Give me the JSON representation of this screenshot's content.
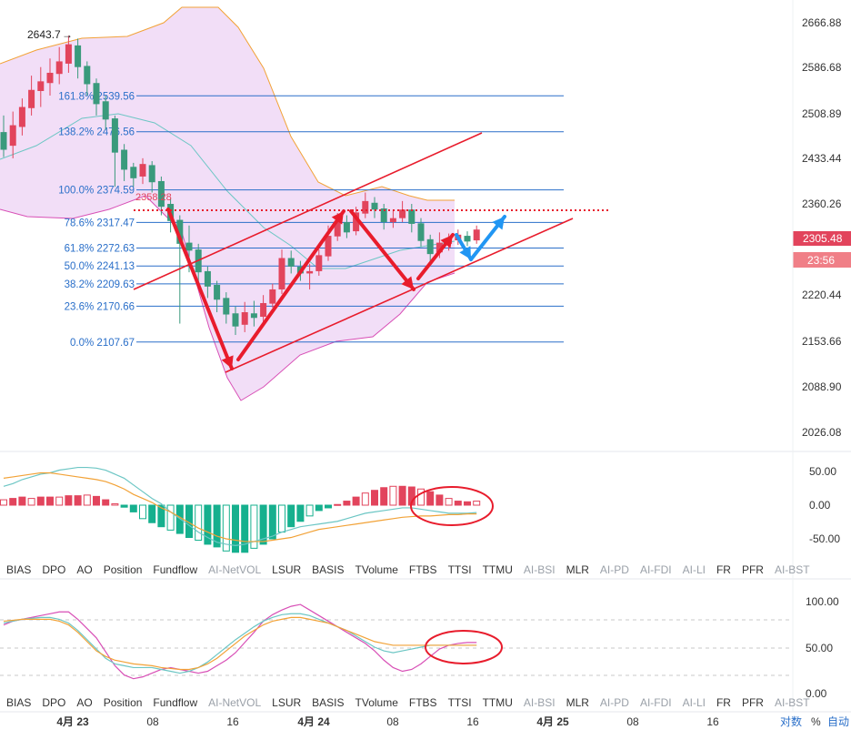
{
  "chart_data": [
    {
      "type": "candlestick",
      "name": "main",
      "y_ticks": [
        "2666.88",
        "2586.68",
        "2508.89",
        "2433.44",
        "2360.26",
        "2220.44",
        "2153.66",
        "2088.90",
        "2026.08"
      ],
      "current_price_label": "2305.48",
      "countdown_label": "23:56",
      "high_annotation": "2643.7",
      "low_label_partial": "2358.28",
      "fib_levels": [
        {
          "label": "161.8% 2539.56",
          "price": 2539.56
        },
        {
          "label": "138.2% 2476.56",
          "price": 2476.56
        },
        {
          "label": "100.0% 2374.59",
          "price": 2374.59
        },
        {
          "label": "78.6% 2317.47",
          "price": 2317.47
        },
        {
          "label": "61.8% 2272.63",
          "price": 2272.63
        },
        {
          "label": "50.0% 2241.13",
          "price": 2241.13
        },
        {
          "label": "38.2% 2209.63",
          "price": 2209.63
        },
        {
          "label": "23.6% 2170.66",
          "price": 2170.66
        },
        {
          "label": "0.0% 2107.67",
          "price": 2107.67
        }
      ],
      "candles": [
        [
          2476,
          2445,
          2505,
          2432
        ],
        [
          2452,
          2488,
          2512,
          2430
        ],
        [
          2485,
          2520,
          2535,
          2470
        ],
        [
          2518,
          2550,
          2575,
          2505
        ],
        [
          2548,
          2565,
          2590,
          2520
        ],
        [
          2562,
          2580,
          2605,
          2540
        ],
        [
          2578,
          2600,
          2625,
          2560
        ],
        [
          2596,
          2630,
          2645,
          2580
        ],
        [
          2628,
          2590,
          2640,
          2570
        ],
        [
          2592,
          2560,
          2600,
          2540
        ],
        [
          2562,
          2525,
          2570,
          2505
        ],
        [
          2530,
          2498,
          2540,
          2480
        ],
        [
          2500,
          2440,
          2505,
          2380
        ],
        [
          2445,
          2410,
          2455,
          2390
        ],
        [
          2415,
          2395,
          2422,
          2380
        ],
        [
          2398,
          2420,
          2430,
          2385
        ],
        [
          2418,
          2388,
          2425,
          2370
        ],
        [
          2390,
          2345,
          2398,
          2330
        ],
        [
          2350,
          2320,
          2360,
          2300
        ],
        [
          2322,
          2280,
          2330,
          2140
        ],
        [
          2282,
          2268,
          2312,
          2230
        ],
        [
          2270,
          2230,
          2280,
          2210
        ],
        [
          2232,
          2205,
          2240,
          2185
        ],
        [
          2208,
          2182,
          2215,
          2160
        ],
        [
          2185,
          2156,
          2195,
          2140
        ],
        [
          2158,
          2135,
          2170,
          2120
        ],
        [
          2138,
          2160,
          2178,
          2125
        ],
        [
          2158,
          2150,
          2180,
          2135
        ],
        [
          2152,
          2176,
          2190,
          2140
        ],
        [
          2175,
          2200,
          2210,
          2168
        ],
        [
          2200,
          2255,
          2270,
          2192
        ],
        [
          2255,
          2240,
          2268,
          2228
        ],
        [
          2240,
          2228,
          2250,
          2215
        ],
        [
          2228,
          2232,
          2245,
          2200
        ],
        [
          2232,
          2260,
          2270,
          2224
        ],
        [
          2258,
          2294,
          2312,
          2250
        ],
        [
          2293,
          2320,
          2334,
          2285
        ],
        [
          2318,
          2300,
          2330,
          2290
        ],
        [
          2302,
          2335,
          2345,
          2295
        ],
        [
          2333,
          2355,
          2370,
          2325
        ],
        [
          2352,
          2340,
          2362,
          2325
        ],
        [
          2342,
          2318,
          2350,
          2305
        ],
        [
          2318,
          2325,
          2340,
          2308
        ],
        [
          2325,
          2340,
          2355,
          2318
        ],
        [
          2340,
          2315,
          2350,
          2300
        ],
        [
          2316,
          2285,
          2325,
          2275
        ],
        [
          2288,
          2262,
          2296,
          2245
        ],
        [
          2265,
          2282,
          2300,
          2255
        ],
        [
          2280,
          2288,
          2298,
          2268
        ],
        [
          2286,
          2296,
          2305,
          2278
        ],
        [
          2294,
          2284,
          2302,
          2276
        ],
        [
          2286,
          2305,
          2312,
          2280
        ]
      ]
    },
    {
      "type": "histogram",
      "name": "oscillator_1",
      "y_ticks": [
        "50.00",
        "0.00",
        "-50.00"
      ],
      "bars": [
        8,
        10,
        12,
        10,
        12,
        12,
        12,
        14,
        14,
        15,
        13,
        8,
        2,
        -3,
        -10,
        -20,
        -26,
        -32,
        -37,
        -42,
        -48,
        -52,
        -58,
        -62,
        -68,
        -70,
        -70,
        -64,
        -58,
        -50,
        -40,
        -32,
        -24,
        -16,
        -8,
        -4,
        1,
        6,
        12,
        18,
        22,
        26,
        28,
        28,
        27,
        24,
        20,
        15,
        10,
        6,
        5,
        6
      ],
      "line_a": [
        28,
        32,
        38,
        42,
        46,
        48,
        52,
        54,
        56,
        56,
        55,
        52,
        46,
        40,
        30,
        20,
        10,
        2,
        -10,
        -20,
        -30,
        -40,
        -48,
        -55,
        -58,
        -60,
        -58,
        -54,
        -50,
        -46,
        -40,
        -36,
        -32,
        -30,
        -28,
        -26,
        -24,
        -20,
        -16,
        -12,
        -10,
        -8,
        -6,
        -4,
        -4,
        -6,
        -8,
        -10,
        -12,
        -12,
        -12,
        -11
      ],
      "line_b": [
        40,
        42,
        44,
        46,
        48,
        48,
        46,
        44,
        42,
        40,
        38,
        35,
        30,
        24,
        16,
        10,
        4,
        -4,
        -10,
        -18,
        -26,
        -34,
        -40,
        -46,
        -50,
        -52,
        -54,
        -54,
        -54,
        -52,
        -50,
        -48,
        -44,
        -40,
        -36,
        -34,
        -32,
        -30,
        -28,
        -26,
        -24,
        -22,
        -20,
        -18,
        -17,
        -16,
        -16,
        -15,
        -14,
        -14,
        -13,
        -13
      ]
    },
    {
      "type": "line",
      "name": "oscillator_2",
      "y_ticks": [
        "100.00",
        "50.00",
        "0.00"
      ],
      "line_k": [
        74,
        78,
        80,
        82,
        84,
        86,
        88,
        88,
        80,
        70,
        60,
        45,
        30,
        20,
        16,
        18,
        22,
        26,
        28,
        26,
        24,
        22,
        24,
        30,
        36,
        44,
        55,
        66,
        78,
        85,
        90,
        94,
        96,
        90,
        84,
        78,
        72,
        66,
        60,
        54,
        46,
        36,
        28,
        24,
        26,
        32,
        40,
        48,
        52,
        54,
        55,
        55
      ],
      "line_a": [
        76,
        78,
        80,
        81,
        82,
        82,
        80,
        76,
        68,
        58,
        48,
        38,
        32,
        30,
        28,
        28,
        28,
        26,
        24,
        22,
        24,
        28,
        34,
        42,
        50,
        58,
        65,
        72,
        78,
        82,
        85,
        86,
        86,
        84,
        80,
        76,
        72,
        68,
        62,
        56,
        50,
        46,
        44,
        46,
        48,
        50,
        52,
        52,
        52,
        52,
        52,
        52
      ],
      "line_b": [
        78,
        79,
        80,
        80,
        80,
        80,
        78,
        74,
        66,
        56,
        46,
        40,
        36,
        34,
        32,
        31,
        30,
        28,
        27,
        26,
        26,
        28,
        32,
        38,
        46,
        54,
        62,
        68,
        74,
        78,
        80,
        82,
        82,
        80,
        78,
        76,
        72,
        68,
        64,
        60,
        56,
        54,
        52,
        52,
        52,
        52,
        52,
        52,
        52,
        52,
        52,
        52
      ]
    }
  ],
  "tabs": [
    "BIAS",
    "DPO",
    "AO",
    "Position",
    "Fundflow",
    "AI-NetVOL",
    "LSUR",
    "BASIS",
    "TVolume",
    "FTBS",
    "TTSI",
    "TTMU",
    "AI-BSI",
    "MLR",
    "AI-PD",
    "AI-FDI",
    "AI-LI",
    "FR",
    "PFR",
    "AI-BST"
  ],
  "tab_states": [
    "active",
    "active",
    "active",
    "active",
    "active",
    "dim",
    "active",
    "active",
    "active",
    "active",
    "active",
    "active",
    "dim",
    "active",
    "dim",
    "dim",
    "dim",
    "active",
    "active",
    "dim"
  ],
  "x_axis_labels": [
    "4月 23",
    "08",
    "16",
    "4月 24",
    "08",
    "16",
    "4月 25",
    "08",
    "16"
  ],
  "bottom_controls": {
    "log": "对数",
    "percent": "%",
    "auto": "自动"
  },
  "colors": {
    "up": "#e2445c",
    "down": "#3a9a7c",
    "fib": "#2a6fc9",
    "trend": "#e81c2c",
    "projection": "#2196f3",
    "band_fill": "#f0d8f6",
    "band_upper": "#f2a237",
    "band_lower": "#d84fb6",
    "middle": "#6cc6c4",
    "hist_pos": "#e2445c",
    "hist_neg": "#16b08e"
  }
}
